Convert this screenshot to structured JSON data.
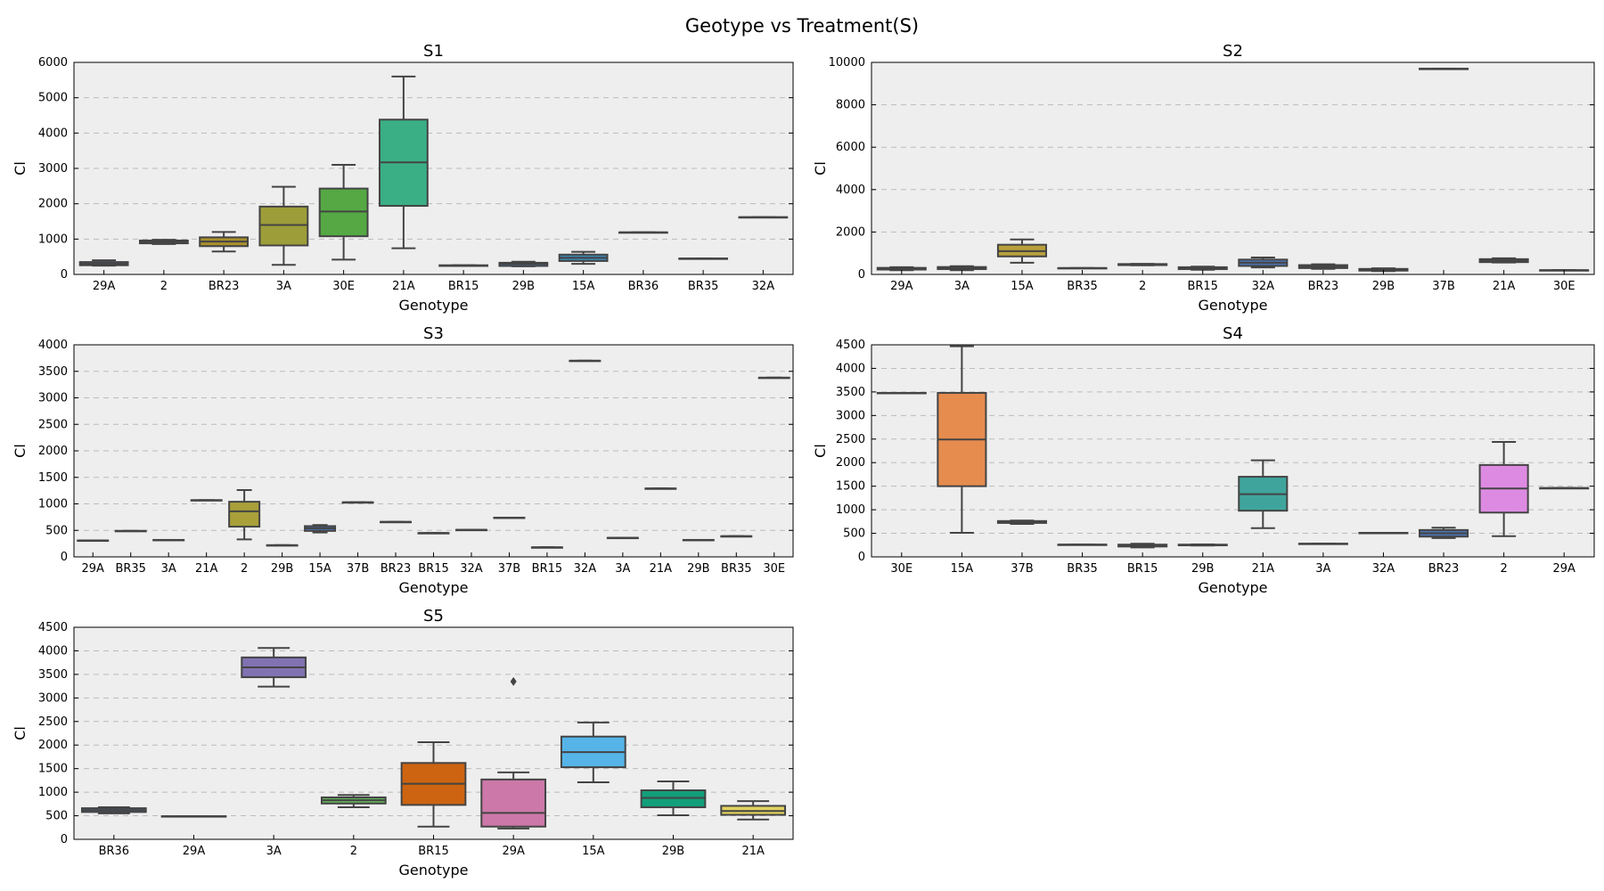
{
  "figure": {
    "title": "Geotype vs Treatment(S)"
  },
  "colors": {
    "panel_bg": "#eeeeee",
    "grid": "#bbbbbb",
    "edge": "#444444",
    "line": "#444444"
  },
  "chart_data": [
    {
      "type": "box",
      "title": "S1",
      "xlabel": "Genotype",
      "ylabel": "Cl",
      "ylim": [
        0,
        6000
      ],
      "yticks": [
        0,
        1000,
        2000,
        3000,
        4000,
        5000,
        6000
      ],
      "grid": "horizontal-dashed",
      "categories": [
        "29A",
        "2",
        "BR23",
        "3A",
        "30E",
        "21A",
        "BR15",
        "29B",
        "15A",
        "BR36",
        "BR35",
        "32A"
      ],
      "boxes": [
        {
          "label": "29A",
          "min": 250,
          "q1": 260,
          "median": 300,
          "q3": 350,
          "max": 400,
          "color": "#4c72b0"
        },
        {
          "label": "2",
          "min": 860,
          "q1": 880,
          "median": 930,
          "q3": 960,
          "max": 980,
          "color": "#4c72b0"
        },
        {
          "label": "BR23",
          "min": 650,
          "q1": 800,
          "median": 930,
          "q3": 1050,
          "max": 1200,
          "color": "#a98f2d"
        },
        {
          "label": "3A",
          "min": 270,
          "q1": 820,
          "median": 1400,
          "q3": 1920,
          "max": 2480,
          "color": "#9d9d3a"
        },
        {
          "label": "30E",
          "min": 420,
          "q1": 1080,
          "median": 1780,
          "q3": 2430,
          "max": 3100,
          "color": "#55a844"
        },
        {
          "label": "21A",
          "min": 740,
          "q1": 1940,
          "median": 3170,
          "q3": 4380,
          "max": 5600,
          "color": "#3aaf85"
        },
        {
          "label": "BR15",
          "min": 240,
          "q1": 240,
          "median": 250,
          "q3": 260,
          "max": 260,
          "color": "#4c72b0"
        },
        {
          "label": "29B",
          "min": 230,
          "q1": 240,
          "median": 300,
          "q3": 330,
          "max": 360,
          "color": "#4c72b0"
        },
        {
          "label": "15A",
          "min": 300,
          "q1": 380,
          "median": 470,
          "q3": 560,
          "max": 640,
          "color": "#3b86b3"
        },
        {
          "label": "BR36",
          "min": 1190,
          "q1": 1190,
          "median": 1190,
          "q3": 1190,
          "max": 1190,
          "color": "#4c72b0"
        },
        {
          "label": "BR35",
          "min": 450,
          "q1": 450,
          "median": 450,
          "q3": 450,
          "max": 450,
          "color": "#4c72b0"
        },
        {
          "label": "32A",
          "min": 1620,
          "q1": 1620,
          "median": 1620,
          "q3": 1620,
          "max": 1620,
          "color": "#4c72b0"
        }
      ]
    },
    {
      "type": "box",
      "title": "S2",
      "xlabel": "Genotype",
      "ylabel": "Cl",
      "ylim": [
        0,
        10000
      ],
      "yticks": [
        0,
        2000,
        4000,
        6000,
        8000,
        10000
      ],
      "grid": "horizontal-dashed",
      "categories": [
        "29A",
        "3A",
        "15A",
        "BR35",
        "2",
        "BR15",
        "32A",
        "BR23",
        "29B",
        "37B",
        "21A",
        "30E"
      ],
      "boxes": [
        {
          "label": "29A",
          "min": 200,
          "q1": 230,
          "median": 270,
          "q3": 310,
          "max": 340,
          "color": "#4c72b0"
        },
        {
          "label": "3A",
          "min": 200,
          "q1": 250,
          "median": 300,
          "q3": 350,
          "max": 390,
          "color": "#4c72b0"
        },
        {
          "label": "15A",
          "min": 550,
          "q1": 850,
          "median": 1100,
          "q3": 1400,
          "max": 1650,
          "color": "#b8a03c"
        },
        {
          "label": "BR35",
          "min": 300,
          "q1": 300,
          "median": 300,
          "q3": 300,
          "max": 300,
          "color": "#4c72b0"
        },
        {
          "label": "2",
          "min": 430,
          "q1": 440,
          "median": 470,
          "q3": 490,
          "max": 500,
          "color": "#4c72b0"
        },
        {
          "label": "BR15",
          "min": 220,
          "q1": 250,
          "median": 300,
          "q3": 340,
          "max": 370,
          "color": "#4c72b0"
        },
        {
          "label": "32A",
          "min": 330,
          "q1": 400,
          "median": 550,
          "q3": 700,
          "max": 800,
          "color": "#4c72b0"
        },
        {
          "label": "BR23",
          "min": 260,
          "q1": 300,
          "median": 370,
          "q3": 440,
          "max": 480,
          "color": "#4c72b0"
        },
        {
          "label": "29B",
          "min": 160,
          "q1": 180,
          "median": 220,
          "q3": 260,
          "max": 290,
          "color": "#4c72b0"
        },
        {
          "label": "37B",
          "min": 9700,
          "q1": 9700,
          "median": 9700,
          "q3": 9700,
          "max": 9700,
          "color": "#4c72b0"
        },
        {
          "label": "21A",
          "min": 560,
          "q1": 580,
          "median": 650,
          "q3": 720,
          "max": 760,
          "color": "#4c72b0"
        },
        {
          "label": "30E",
          "min": 200,
          "q1": 200,
          "median": 200,
          "q3": 200,
          "max": 200,
          "color": "#4c72b0"
        }
      ]
    },
    {
      "type": "box",
      "title": "S3",
      "xlabel": "Genotype",
      "ylabel": "Cl",
      "ylim": [
        0,
        4000
      ],
      "yticks": [
        0,
        500,
        1000,
        1500,
        2000,
        2500,
        3000,
        3500,
        4000
      ],
      "grid": "horizontal-dashed",
      "categories": [
        "29A",
        "BR35",
        "3A",
        "21A",
        "2",
        "29B",
        "15A",
        "37B",
        "BR23",
        "BR15",
        "32A",
        "37B",
        "BR15",
        "32A",
        "3A",
        "21A",
        "29B",
        "BR35",
        "30E"
      ],
      "boxes": [
        {
          "label": "29A",
          "min": 310,
          "q1": 310,
          "median": 310,
          "q3": 310,
          "max": 310,
          "color": "#4c72b0"
        },
        {
          "label": "BR35",
          "min": 490,
          "q1": 490,
          "median": 490,
          "q3": 490,
          "max": 490,
          "color": "#4c72b0"
        },
        {
          "label": "3A",
          "min": 320,
          "q1": 320,
          "median": 320,
          "q3": 320,
          "max": 320,
          "color": "#4c72b0"
        },
        {
          "label": "21A",
          "min": 1070,
          "q1": 1070,
          "median": 1070,
          "q3": 1070,
          "max": 1070,
          "color": "#4c72b0"
        },
        {
          "label": "2",
          "min": 330,
          "q1": 570,
          "median": 860,
          "q3": 1040,
          "max": 1260,
          "color": "#a9a03a"
        },
        {
          "label": "29B",
          "min": 220,
          "q1": 220,
          "median": 220,
          "q3": 220,
          "max": 220,
          "color": "#4c72b0"
        },
        {
          "label": "15A",
          "min": 460,
          "q1": 490,
          "median": 540,
          "q3": 580,
          "max": 600,
          "color": "#4c72b0"
        },
        {
          "label": "37B",
          "min": 1030,
          "q1": 1030,
          "median": 1030,
          "q3": 1030,
          "max": 1030,
          "color": "#4c72b0"
        },
        {
          "label": "BR23",
          "min": 660,
          "q1": 660,
          "median": 660,
          "q3": 660,
          "max": 660,
          "color": "#4c72b0"
        },
        {
          "label": "BR15",
          "min": 450,
          "q1": 450,
          "median": 450,
          "q3": 450,
          "max": 450,
          "color": "#4c72b0"
        },
        {
          "label": "32A",
          "min": 510,
          "q1": 510,
          "median": 510,
          "q3": 510,
          "max": 510,
          "color": "#4c72b0"
        },
        {
          "label": "37B",
          "min": 740,
          "q1": 740,
          "median": 740,
          "q3": 740,
          "max": 740,
          "color": "#4c72b0"
        },
        {
          "label": "BR15",
          "min": 180,
          "q1": 180,
          "median": 180,
          "q3": 180,
          "max": 180,
          "color": "#4c72b0"
        },
        {
          "label": "32A",
          "min": 3700,
          "q1": 3700,
          "median": 3700,
          "q3": 3700,
          "max": 3700,
          "color": "#4c72b0"
        },
        {
          "label": "3A",
          "min": 360,
          "q1": 360,
          "median": 360,
          "q3": 360,
          "max": 360,
          "color": "#4c72b0"
        },
        {
          "label": "21A",
          "min": 1290,
          "q1": 1290,
          "median": 1290,
          "q3": 1290,
          "max": 1290,
          "color": "#4c72b0"
        },
        {
          "label": "29B",
          "min": 320,
          "q1": 320,
          "median": 320,
          "q3": 320,
          "max": 320,
          "color": "#4c72b0"
        },
        {
          "label": "BR35",
          "min": 390,
          "q1": 390,
          "median": 390,
          "q3": 390,
          "max": 390,
          "color": "#4c72b0"
        },
        {
          "label": "30E",
          "min": 3380,
          "q1": 3380,
          "median": 3380,
          "q3": 3380,
          "max": 3380,
          "color": "#4c72b0"
        }
      ]
    },
    {
      "type": "box",
      "title": "S4",
      "xlabel": "Genotype",
      "ylabel": "Cl",
      "ylim": [
        0,
        4500
      ],
      "yticks": [
        0,
        500,
        1000,
        1500,
        2000,
        2500,
        3000,
        3500,
        4000,
        4500
      ],
      "grid": "horizontal-dashed",
      "categories": [
        "30E",
        "15A",
        "37B",
        "BR35",
        "BR15",
        "29B",
        "21A",
        "3A",
        "32A",
        "BR23",
        "2",
        "29A"
      ],
      "boxes": [
        {
          "label": "30E",
          "min": 3480,
          "q1": 3480,
          "median": 3480,
          "q3": 3480,
          "max": 3480,
          "color": "#4c72b0"
        },
        {
          "label": "15A",
          "min": 510,
          "q1": 1500,
          "median": 2490,
          "q3": 3480,
          "max": 4470,
          "color": "#e58c4e"
        },
        {
          "label": "37B",
          "min": 700,
          "q1": 720,
          "median": 740,
          "q3": 760,
          "max": 770,
          "color": "#4c72b0"
        },
        {
          "label": "BR35",
          "min": 260,
          "q1": 260,
          "median": 260,
          "q3": 260,
          "max": 260,
          "color": "#4c72b0"
        },
        {
          "label": "BR15",
          "min": 200,
          "q1": 220,
          "median": 240,
          "q3": 260,
          "max": 280,
          "color": "#4c72b0"
        },
        {
          "label": "29B",
          "min": 240,
          "q1": 245,
          "median": 250,
          "q3": 260,
          "max": 265,
          "color": "#4c72b0"
        },
        {
          "label": "21A",
          "min": 610,
          "q1": 980,
          "median": 1330,
          "q3": 1700,
          "max": 2050,
          "color": "#3fa59c"
        },
        {
          "label": "3A",
          "min": 280,
          "q1": 280,
          "median": 280,
          "q3": 280,
          "max": 280,
          "color": "#4c72b0"
        },
        {
          "label": "32A",
          "min": 510,
          "q1": 510,
          "median": 510,
          "q3": 510,
          "max": 510,
          "color": "#4c72b0"
        },
        {
          "label": "BR23",
          "min": 400,
          "q1": 430,
          "median": 500,
          "q3": 570,
          "max": 620,
          "color": "#4c72b0"
        },
        {
          "label": "2",
          "min": 440,
          "q1": 940,
          "median": 1450,
          "q3": 1950,
          "max": 2440,
          "color": "#dd8be2"
        },
        {
          "label": "29A",
          "min": 1460,
          "q1": 1460,
          "median": 1460,
          "q3": 1460,
          "max": 1460,
          "color": "#4c72b0"
        }
      ]
    },
    {
      "type": "box",
      "title": "S5",
      "xlabel": "Genotype",
      "ylabel": "Cl",
      "ylim": [
        0,
        4500
      ],
      "yticks": [
        0,
        500,
        1000,
        1500,
        2000,
        2500,
        3000,
        3500,
        4000,
        4500
      ],
      "grid": "horizontal-dashed",
      "categories": [
        "BR36",
        "29A",
        "3A",
        "2",
        "BR15",
        "29A",
        "15A",
        "29B",
        "21A"
      ],
      "boxes": [
        {
          "label": "BR36",
          "min": 550,
          "q1": 580,
          "median": 620,
          "q3": 660,
          "max": 680,
          "color": "#4c72b0"
        },
        {
          "label": "29A",
          "min": 490,
          "q1": 490,
          "median": 490,
          "q3": 490,
          "max": 490,
          "color": "#4c72b0"
        },
        {
          "label": "3A",
          "min": 3240,
          "q1": 3440,
          "median": 3650,
          "q3": 3860,
          "max": 4060,
          "color": "#8172b2"
        },
        {
          "label": "2",
          "min": 680,
          "q1": 760,
          "median": 830,
          "q3": 890,
          "max": 940,
          "color": "#64b05a"
        },
        {
          "label": "BR15",
          "min": 270,
          "q1": 730,
          "median": 1180,
          "q3": 1620,
          "max": 2060,
          "color": "#cc6411"
        },
        {
          "label": "29A",
          "min": 230,
          "q1": 270,
          "median": 560,
          "q3": 1270,
          "max": 1420,
          "color": "#cc78a8",
          "outliers": [
            3350
          ]
        },
        {
          "label": "15A",
          "min": 1210,
          "q1": 1530,
          "median": 1850,
          "q3": 2180,
          "max": 2480,
          "color": "#56b4e9"
        },
        {
          "label": "29B",
          "min": 510,
          "q1": 680,
          "median": 880,
          "q3": 1040,
          "max": 1230,
          "color": "#129f7a"
        },
        {
          "label": "21A",
          "min": 420,
          "q1": 520,
          "median": 600,
          "q3": 710,
          "max": 810,
          "color": "#e0d060"
        }
      ]
    }
  ]
}
